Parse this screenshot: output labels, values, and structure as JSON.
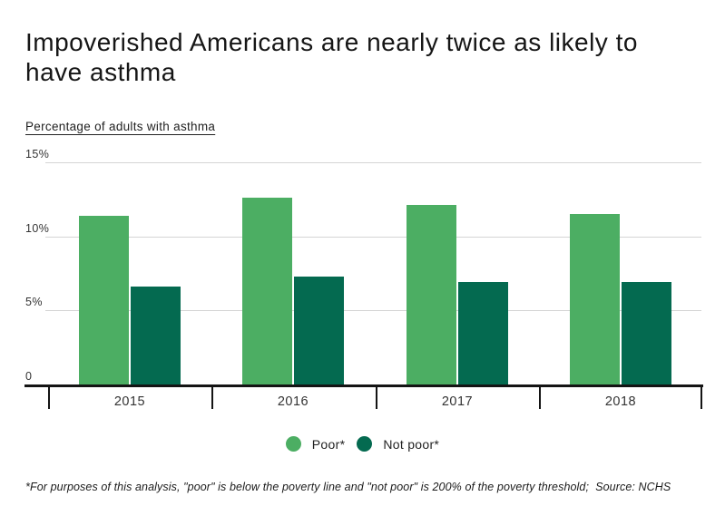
{
  "header": {
    "title": "Impoverished Americans are nearly twice as likely to have asthma",
    "subtitle": "Percentage of adults with asthma"
  },
  "footer": {
    "note": "*For purposes of this analysis, \"poor\" is below the poverty line and \"not poor\" is 200% of the poverty threshold;  Source: NCHS"
  },
  "colors": {
    "poor": "#4cae63",
    "not_poor": "#046a50",
    "gridline": "#d4d4d4",
    "axis": "#141414",
    "text": "#333333"
  },
  "legend": {
    "items": [
      {
        "label": "Poor*",
        "color": "#4cae63"
      },
      {
        "label": "Not poor*",
        "color": "#046a50"
      }
    ]
  },
  "chart_data": {
    "type": "bar",
    "title": "Impoverished Americans are nearly twice as likely to have asthma",
    "subtitle": "Percentage of adults with asthma",
    "categories": [
      "2015",
      "2016",
      "2017",
      "2018"
    ],
    "series": [
      {
        "name": "Poor*",
        "color": "#4cae63",
        "values": [
          11.4,
          12.6,
          12.1,
          11.5
        ]
      },
      {
        "name": "Not poor*",
        "color": "#046a50",
        "values": [
          6.6,
          7.3,
          6.9,
          6.9
        ]
      }
    ],
    "xlabel": "",
    "ylabel": "Percentage of adults with asthma",
    "ylim": [
      0,
      15
    ],
    "yticks": [
      {
        "value": 15,
        "label": "15%"
      },
      {
        "value": 10,
        "label": "10%"
      },
      {
        "value": 5,
        "label": "5%"
      },
      {
        "value": 0,
        "label": "0"
      }
    ],
    "grid": true,
    "legend_position": "bottom",
    "source": "NCHS"
  }
}
